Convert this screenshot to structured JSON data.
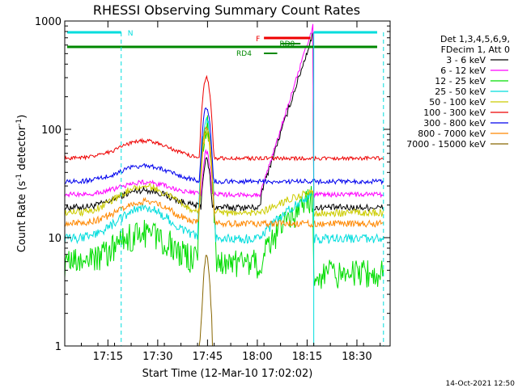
{
  "chart_data": {
    "type": "line",
    "title": "RHESSI Observing Summary Count Rates",
    "xlabel": "Start Time (12-Mar-10 17:02:02)",
    "ylabel_main": "Count Rate (s",
    "ylabel_sup1": "-1",
    "ylabel_mid": " detector",
    "ylabel_sup2": "-1",
    "ylabel_end": ")",
    "yscale": "log",
    "ylim": [
      1,
      1000
    ],
    "xlim_min": [
      1022,
      1120
    ],
    "x_ticks": [
      {
        "value": 1035,
        "label": "17:15"
      },
      {
        "value": 1050,
        "label": "17:30"
      },
      {
        "value": 1065,
        "label": "17:45"
      },
      {
        "value": 1080,
        "label": "18:00"
      },
      {
        "value": 1095,
        "label": "18:15"
      },
      {
        "value": 1110,
        "label": "18:30"
      }
    ],
    "y_ticks": [
      {
        "value": 1,
        "label": "1"
      },
      {
        "value": 10,
        "label": "10"
      },
      {
        "value": 100,
        "label": "100"
      },
      {
        "value": 1000,
        "label": "1000"
      }
    ],
    "legend_header": [
      "Det 1,3,4,5,6,9,",
      "FDecim 1, Att 0"
    ],
    "series": [
      {
        "name": "3 - 6 keV",
        "color": "#000000"
      },
      {
        "name": "6 - 12 keV",
        "color": "#ff00ff"
      },
      {
        "name": "12 - 25 keV",
        "color": "#00dd00"
      },
      {
        "name": "25 - 50 keV",
        "color": "#00dddd"
      },
      {
        "name": "50 - 100 keV",
        "color": "#cccc00"
      },
      {
        "name": "100 - 300 keV",
        "color": "#ee0000"
      },
      {
        "name": "300 - 800 keV",
        "color": "#0000ee"
      },
      {
        "name": "800 - 7000 keV",
        "color": "#ff8800"
      },
      {
        "name": "7000 - 15000 keV",
        "color": "#886600"
      }
    ],
    "flag_labels": {
      "n": "N",
      "f": "F",
      "rd0": "RD0",
      "rd4": "RD4"
    },
    "flag_colors": {
      "cyan": "#00dddd",
      "red": "#ee0000",
      "green": "#008800"
    },
    "saa_boundaries_min": [
      1039,
      1097,
      1118
    ],
    "footer": "14-Oct-2021 12:50"
  }
}
